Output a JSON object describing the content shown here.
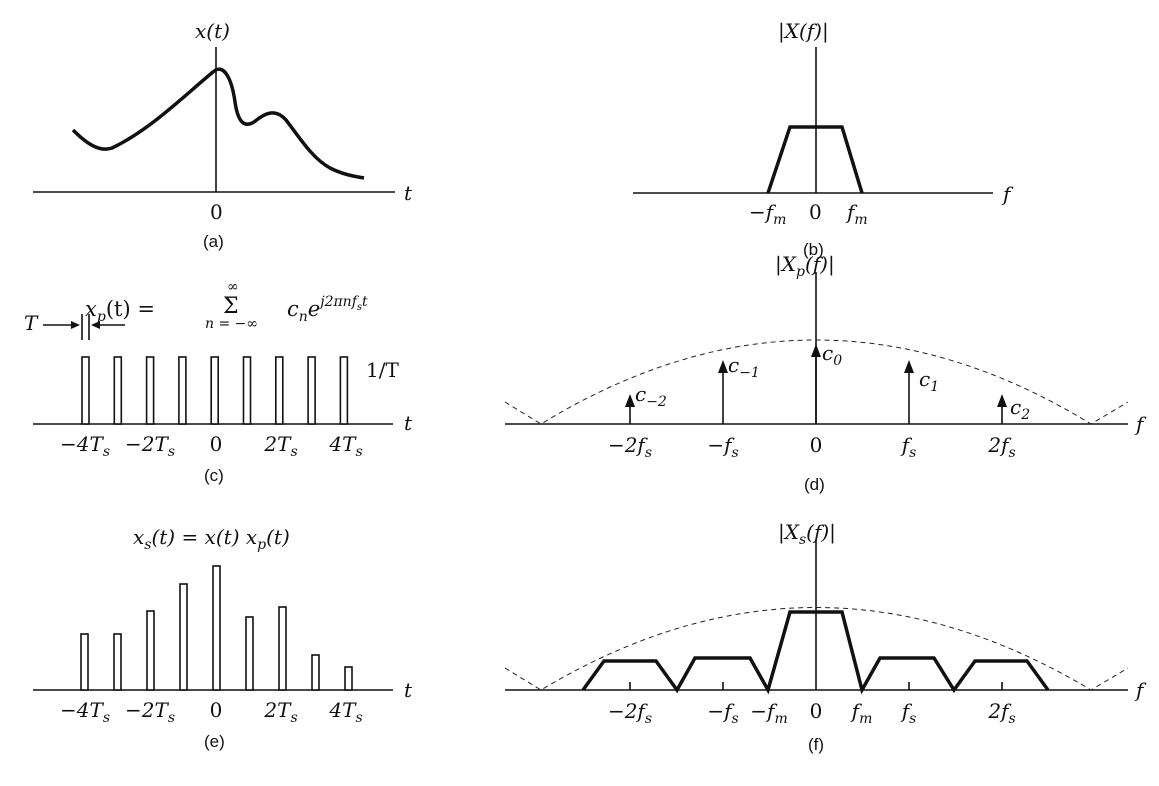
{
  "colors": {
    "ink": "#111111",
    "background": "#ffffff"
  },
  "panel_a": {
    "ylabel": "x(t)",
    "xlabel": "t",
    "tick_0": "0",
    "caption": "(a)"
  },
  "panel_b": {
    "ylabel": "|X(f)|",
    "xlabel": "f",
    "tick_neg_fm": "−f",
    "tick_neg_fm_sub": "m",
    "tick_0": "0",
    "tick_fm": "f",
    "tick_fm_sub": "m",
    "caption": "(b)"
  },
  "panel_c": {
    "formula_lhs": "x",
    "formula_lhs_sub": "p",
    "formula_lhs_arg": "(t) =",
    "sum_top": "∞",
    "sum_symbol": "Σ",
    "sum_bottom": "n = −∞",
    "term_c": "c",
    "term_c_sub": "n",
    "term_e": "e",
    "term_exp": "j2πnf",
    "term_exp_sub": "s",
    "term_exp_t": "t",
    "width_label": "T",
    "height_label": "1/T",
    "xlabel": "t",
    "ticks": [
      {
        "text": "−4T",
        "sub": "s"
      },
      {
        "text": "−2T",
        "sub": "s"
      },
      {
        "text": "0",
        "sub": ""
      },
      {
        "text": "2T",
        "sub": "s"
      },
      {
        "text": "4T",
        "sub": "s"
      }
    ],
    "caption": "(c)"
  },
  "panel_d": {
    "ylabel_pre": "|X",
    "ylabel_sub": "p",
    "ylabel_post": "(f)|",
    "xlabel": "f",
    "coefficients": [
      {
        "text": "c",
        "sub": "−2"
      },
      {
        "text": "c",
        "sub": "−1"
      },
      {
        "text": "c",
        "sub": "0"
      },
      {
        "text": "c",
        "sub": "1"
      },
      {
        "text": "c",
        "sub": "2"
      }
    ],
    "ticks": [
      {
        "text": "−2f",
        "sub": "s"
      },
      {
        "text": "−f",
        "sub": "s"
      },
      {
        "text": "0",
        "sub": ""
      },
      {
        "text": "f",
        "sub": "s"
      },
      {
        "text": "2f",
        "sub": "s"
      }
    ],
    "caption": "(d)"
  },
  "panel_e": {
    "formula_a": "x",
    "formula_a_sub": "s",
    "formula_b": "(t) = x(t) x",
    "formula_b_sub": "p",
    "formula_c": "(t)",
    "xlabel": "t",
    "ticks": [
      {
        "text": "−4T",
        "sub": "s"
      },
      {
        "text": "−2T",
        "sub": "s"
      },
      {
        "text": "0",
        "sub": ""
      },
      {
        "text": "2T",
        "sub": "s"
      },
      {
        "text": "4T",
        "sub": "s"
      }
    ],
    "caption": "(e)"
  },
  "panel_f": {
    "ylabel_pre": "|X",
    "ylabel_sub": "s",
    "ylabel_post": "(f)|",
    "xlabel": "f",
    "ticks": [
      {
        "text": "−2f",
        "sub": "s"
      },
      {
        "text": "−f",
        "sub": "s"
      },
      {
        "text": "−f",
        "sub": "m"
      },
      {
        "text": "0",
        "sub": ""
      },
      {
        "text": "f",
        "sub": "m"
      },
      {
        "text": "f",
        "sub": "s"
      },
      {
        "text": "2f",
        "sub": "s"
      }
    ],
    "caption": "(f)"
  }
}
